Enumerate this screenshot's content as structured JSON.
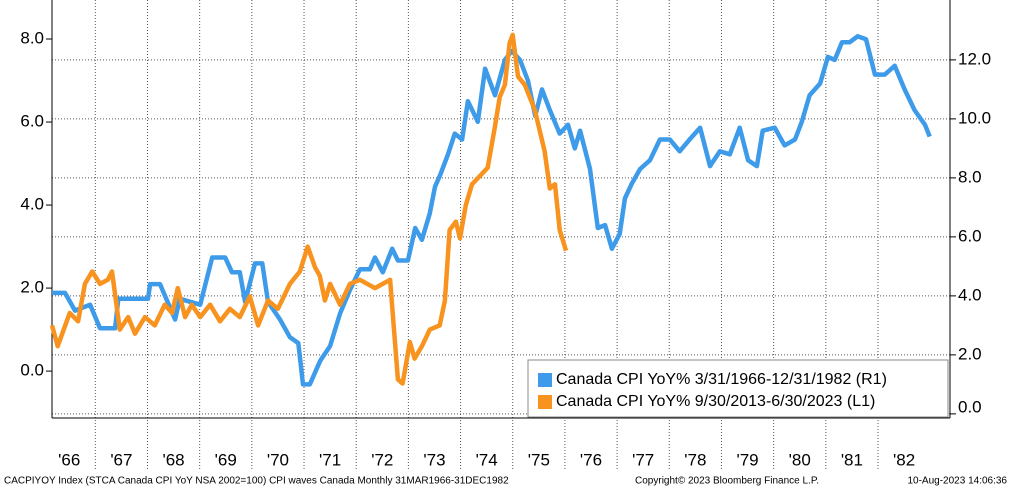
{
  "chart_data": {
    "type": "line",
    "footer": {
      "left": "CACPIYOY Index (STCA Canada CPI YoY NSA 2002=100) CPI waves Canada  Monthly 31MAR1966-31DEC1982",
      "center": "Copyright© 2023 Bloomberg Finance L.P.",
      "right": "10-Aug-2023 14:06:36"
    },
    "xlim": [
      1966.17,
      1983.38
    ],
    "x2lim": [
      2013.75,
      2030.96
    ],
    "xticks": [
      {
        "value": 1966,
        "label": "'66"
      },
      {
        "value": 1967,
        "label": "'67"
      },
      {
        "value": 1968,
        "label": "'68"
      },
      {
        "value": 1969,
        "label": "'69"
      },
      {
        "value": 1970,
        "label": "'70"
      },
      {
        "value": 1971,
        "label": "'71"
      },
      {
        "value": 1972,
        "label": "'72"
      },
      {
        "value": 1973,
        "label": "'73"
      },
      {
        "value": 1974,
        "label": "'74"
      },
      {
        "value": 1975,
        "label": "'75"
      },
      {
        "value": 1976,
        "label": "'76"
      },
      {
        "value": 1977,
        "label": "'77"
      },
      {
        "value": 1978,
        "label": "'78"
      },
      {
        "value": 1979,
        "label": "'79"
      },
      {
        "value": 1980,
        "label": "'80"
      },
      {
        "value": 1981,
        "label": "'81"
      },
      {
        "value": 1982,
        "label": "'82"
      }
    ],
    "ylim": [
      -1.13,
      8.94
    ],
    "yticks": [
      {
        "value": 0,
        "label": "0.0"
      },
      {
        "value": 2,
        "label": "2.0"
      },
      {
        "value": 4,
        "label": "4.0"
      },
      {
        "value": 6,
        "label": "6.0"
      },
      {
        "value": 8,
        "label": "8.0"
      }
    ],
    "y2lim": [
      -0.14,
      14.03
    ],
    "y2ticks": [
      {
        "value": 0,
        "label": "0.0"
      },
      {
        "value": 2,
        "label": "2.0"
      },
      {
        "value": 4,
        "label": "4.0"
      },
      {
        "value": 6,
        "label": "6.0"
      },
      {
        "value": 8,
        "label": "8.0"
      },
      {
        "value": 10,
        "label": "10.0"
      },
      {
        "value": 12,
        "label": "12.0"
      }
    ],
    "grid": true,
    "legend": "bottom-right",
    "series": [
      {
        "name": "Canada CPI YoY% 3/31/1966-12/31/1982 (R1)",
        "color": "#3d9be9",
        "axis": "y2",
        "x": [
          1966.17,
          1966.42,
          1966.61,
          1966.9,
          1967.09,
          1967.38,
          1967.44,
          1968.01,
          1968.05,
          1968.24,
          1968.53,
          1968.62,
          1969.01,
          1969.24,
          1969.49,
          1969.62,
          1969.77,
          1969.87,
          1970.06,
          1970.2,
          1970.31,
          1970.54,
          1970.73,
          1970.89,
          1970.98,
          1971.11,
          1971.31,
          1971.5,
          1971.69,
          1971.88,
          1972.07,
          1972.26,
          1972.36,
          1972.51,
          1972.69,
          1972.8,
          1972.99,
          1973.13,
          1973.26,
          1973.41,
          1973.51,
          1973.61,
          1973.76,
          1973.89,
          1974.03,
          1974.14,
          1974.33,
          1974.47,
          1974.66,
          1974.85,
          1974.98,
          1975.14,
          1975.29,
          1975.43,
          1975.56,
          1975.71,
          1975.9,
          1976.06,
          1976.19,
          1976.29,
          1976.48,
          1976.63,
          1976.77,
          1976.9,
          1977.05,
          1977.15,
          1977.28,
          1977.44,
          1977.63,
          1977.82,
          1978.01,
          1978.2,
          1978.39,
          1978.59,
          1978.78,
          1978.97,
          1979.16,
          1979.35,
          1979.51,
          1979.68,
          1979.79,
          1980.02,
          1980.21,
          1980.41,
          1980.54,
          1980.69,
          1980.89,
          1981.04,
          1981.17,
          1981.31,
          1981.46,
          1981.61,
          1981.77,
          1981.94,
          1982.13,
          1982.32,
          1982.51,
          1982.7,
          1982.9,
          1982.99
        ],
        "values": [
          4.1,
          4.1,
          3.5,
          3.7,
          2.9,
          2.9,
          3.9,
          3.9,
          4.4,
          4.4,
          3.2,
          3.9,
          3.7,
          5.3,
          5.3,
          4.8,
          4.8,
          3.8,
          5.1,
          5.1,
          3.8,
          3.2,
          2.6,
          2.4,
          1.0,
          1.0,
          1.8,
          2.3,
          3.4,
          4.2,
          4.9,
          4.9,
          5.3,
          4.8,
          5.6,
          5.2,
          5.2,
          6.3,
          5.9,
          6.8,
          7.7,
          8.1,
          8.8,
          9.5,
          9.3,
          10.6,
          9.9,
          11.7,
          10.8,
          12.0,
          12.3,
          12.0,
          11.3,
          10.1,
          11.0,
          10.3,
          9.5,
          9.8,
          9.0,
          9.6,
          8.3,
          6.3,
          6.4,
          5.6,
          6.1,
          7.3,
          7.8,
          8.3,
          8.6,
          9.3,
          9.3,
          8.9,
          9.3,
          9.7,
          8.4,
          8.9,
          8.8,
          9.7,
          8.6,
          8.4,
          9.6,
          9.7,
          9.1,
          9.3,
          9.9,
          10.8,
          11.2,
          12.1,
          12.0,
          12.6,
          12.6,
          12.8,
          12.7,
          11.5,
          11.5,
          11.8,
          11.0,
          10.3,
          9.8,
          9.4
        ]
      },
      {
        "name": "Canada CPI YoY% 9/30/2013-6/30/2023 (L1)",
        "color": "#f7931e",
        "axis": "y",
        "xaxis": "x2",
        "x": [
          2013.75,
          2013.86,
          2014.09,
          2014.25,
          2014.38,
          2014.52,
          2014.67,
          2014.82,
          2014.9,
          2015.05,
          2015.21,
          2015.34,
          2015.53,
          2015.72,
          2015.91,
          2016.05,
          2016.16,
          2016.3,
          2016.43,
          2016.59,
          2016.78,
          2016.97,
          2017.16,
          2017.35,
          2017.54,
          2017.7,
          2017.89,
          2018.08,
          2018.31,
          2018.5,
          2018.65,
          2018.79,
          2018.88,
          2018.98,
          2019.08,
          2019.27,
          2019.46,
          2019.65,
          2019.94,
          2020.23,
          2020.38,
          2020.47,
          2020.61,
          2020.7,
          2020.84,
          2020.99,
          2021.18,
          2021.28,
          2021.37,
          2021.49,
          2021.57,
          2021.68,
          2021.8,
          2021.95,
          2022.1,
          2022.24,
          2022.33,
          2022.43,
          2022.52,
          2022.58,
          2022.68,
          2022.81,
          2023.0,
          2023.19,
          2023.29,
          2023.39,
          2023.48,
          2023.6
        ],
        "values": [
          1.1,
          0.6,
          1.4,
          1.2,
          2.1,
          2.4,
          2.1,
          2.2,
          2.4,
          1.0,
          1.3,
          0.9,
          1.3,
          1.1,
          1.6,
          1.4,
          2.0,
          1.3,
          1.6,
          1.3,
          1.6,
          1.2,
          1.5,
          1.3,
          1.8,
          1.1,
          1.7,
          1.5,
          2.1,
          2.4,
          3.0,
          2.5,
          2.3,
          1.7,
          2.1,
          1.6,
          2.1,
          2.2,
          2.0,
          2.2,
          -0.2,
          -0.3,
          0.7,
          0.3,
          0.6,
          1.0,
          1.1,
          1.7,
          3.4,
          3.6,
          3.2,
          4.0,
          4.5,
          4.7,
          4.9,
          5.9,
          6.6,
          6.9,
          7.9,
          8.1,
          7.1,
          6.9,
          6.3,
          5.3,
          4.4,
          4.5,
          3.4,
          2.9
        ]
      }
    ]
  }
}
